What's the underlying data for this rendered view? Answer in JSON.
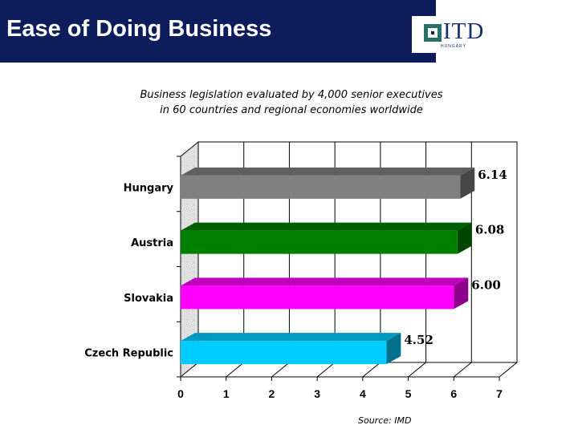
{
  "header": {
    "title": "Ease of Doing Business",
    "logo_text": "ITD",
    "logo_subtext": "HUNGARY"
  },
  "subtitle": {
    "line1": "Business legislation evaluated by 4,000 senior executives",
    "line2": "in 60 countries and regional economies worldwide"
  },
  "source": "Source: IMD",
  "colors": {
    "header_bg": "#0d1d5c",
    "logo_accent": "#2a6f68"
  },
  "chart_data": {
    "type": "bar",
    "orientation": "horizontal",
    "style": "3d",
    "title": "Business legislation evaluated by 4,000 senior executives in 60 countries and regional economies worldwide",
    "categories": [
      "Hungary",
      "Austria",
      "Slovakia",
      "Czech Republic"
    ],
    "values": [
      6.14,
      6.08,
      6.0,
      4.52
    ],
    "value_labels": [
      "6.14",
      "6.08",
      "6.00",
      "4.52"
    ],
    "colors": [
      "#808080",
      "#008000",
      "#ff00ff",
      "#00ccff"
    ],
    "xlim": [
      0,
      7
    ],
    "xticks": [
      "0",
      "1",
      "2",
      "3",
      "4",
      "5",
      "6",
      "7"
    ],
    "xlabel": "",
    "ylabel": "",
    "grid": true
  }
}
